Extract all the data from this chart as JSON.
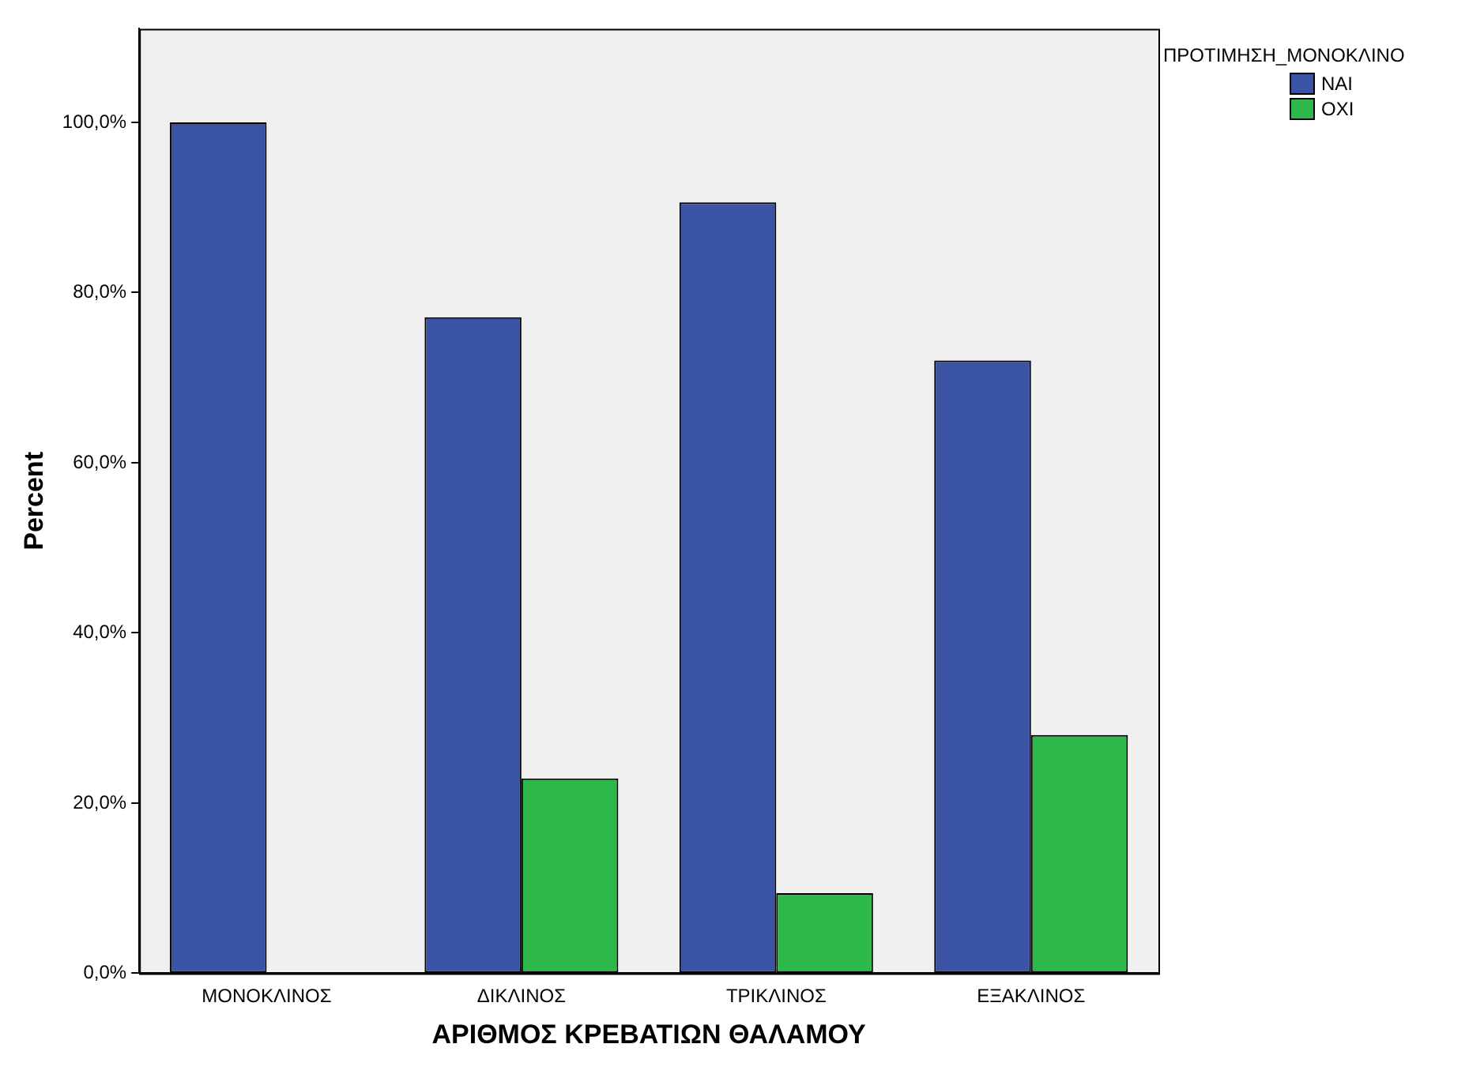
{
  "chart_data": {
    "type": "bar",
    "xlabel": "ΑΡΙΘΜΟΣ ΚΡΕΒΑΤΙΩΝ ΘΑΛΑΜΟΥ",
    "ylabel": "Percent",
    "legend_title": "ΠΡΟΤΙΜΗΣΗ_ΜΟΝΟΚΛΙΝΟ",
    "categories": [
      "ΜΟΝΟΚΛΙΝΟΣ",
      "ΔΙΚΛΙΝΟΣ",
      "ΤΡΙΚΛΙΝΟΣ",
      "ΕΞΑΚΛΙΝΟΣ"
    ],
    "series": [
      {
        "name": "ΝΑΙ",
        "color": "#3a53a4",
        "values": [
          100,
          77.1,
          90.6,
          72
        ]
      },
      {
        "name": "ΟΧΙ",
        "color": "#2db84a",
        "values": [
          null,
          22.9,
          9.4,
          28
        ]
      }
    ],
    "ylim": [
      0,
      111
    ],
    "yticks": [
      {
        "value": 0,
        "label": "0,0%"
      },
      {
        "value": 20,
        "label": "20,0%"
      },
      {
        "value": 40,
        "label": "40,0%"
      },
      {
        "value": 60,
        "label": "60,0%"
      },
      {
        "value": 80,
        "label": "80,0%"
      },
      {
        "value": 100,
        "label": "100,0%"
      }
    ],
    "grid": false,
    "legend": "top right"
  }
}
